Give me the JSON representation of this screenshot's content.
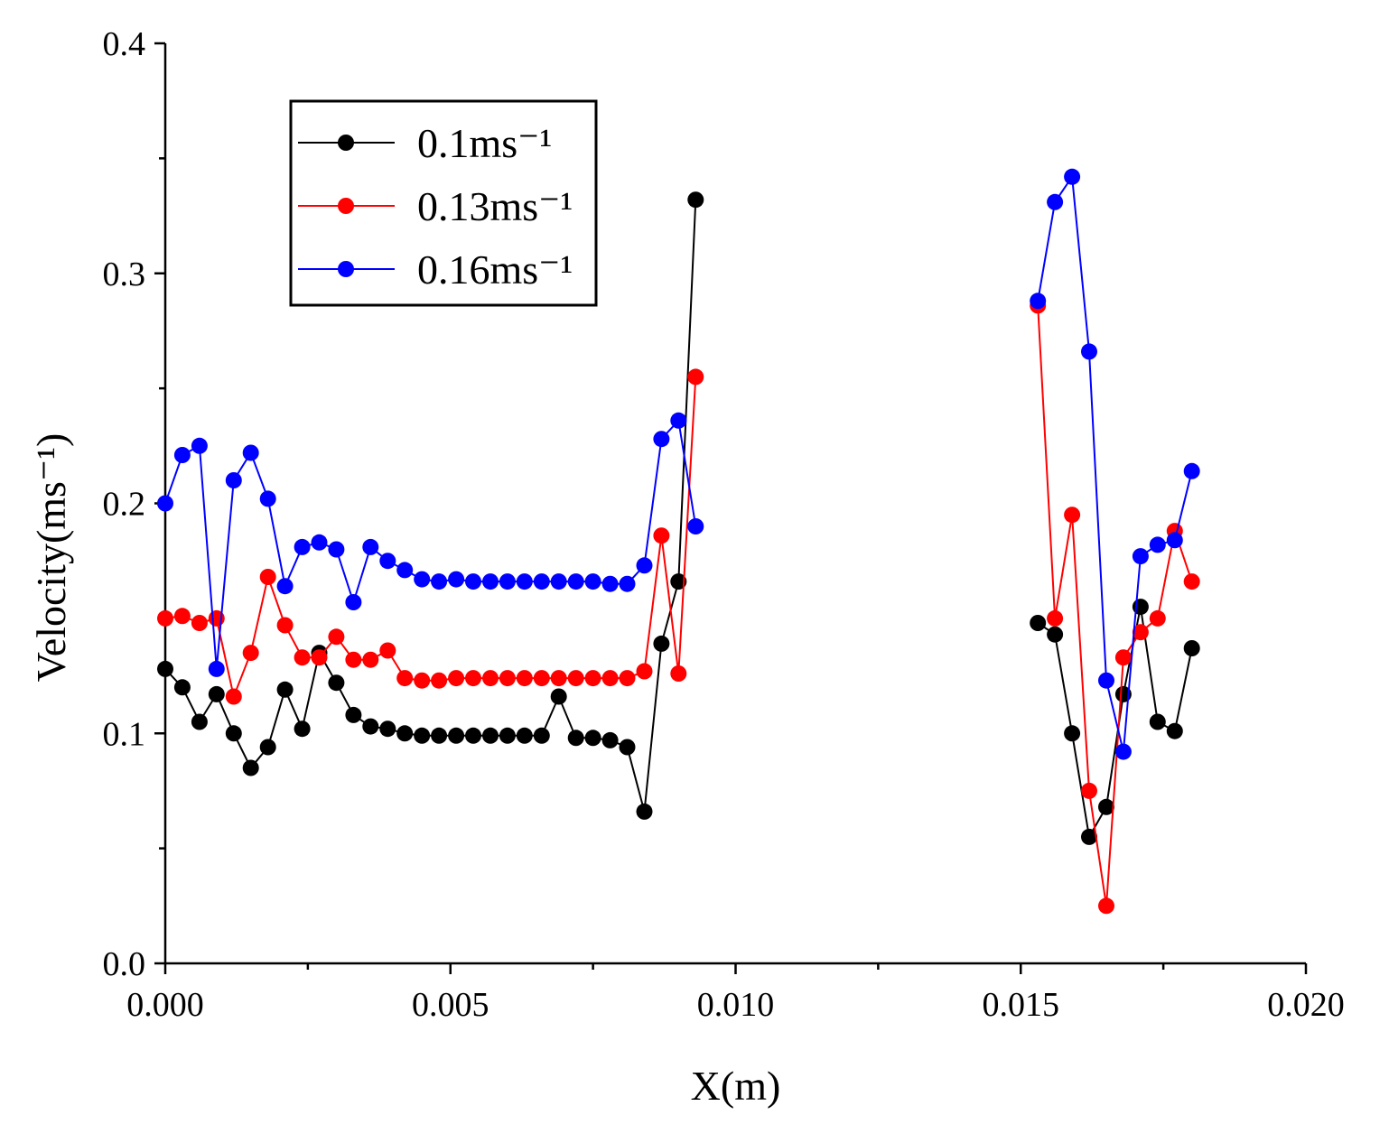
{
  "chart_data": {
    "type": "line",
    "title": "",
    "xlabel": "X(m)",
    "ylabel": "Velocity(ms⁻¹)",
    "xlim": [
      0.0,
      0.02
    ],
    "ylim": [
      0.0,
      0.4
    ],
    "xticks": [
      0.0,
      0.005,
      0.01,
      0.015,
      0.02
    ],
    "xtick_labels": [
      "0.000",
      "0.005",
      "0.010",
      "0.015",
      "0.020"
    ],
    "yticks": [
      0.0,
      0.1,
      0.2,
      0.3,
      0.4
    ],
    "ytick_labels": [
      "0.0",
      "0.1",
      "0.2",
      "0.3",
      "0.4"
    ],
    "grid": false,
    "legend_position": "top-left",
    "series": [
      {
        "name": "0.1ms⁻¹",
        "color": "#000000",
        "segments": [
          [
            [
              0.0,
              0.128
            ],
            [
              0.0003,
              0.12
            ],
            [
              0.0006,
              0.105
            ],
            [
              0.0009,
              0.117
            ],
            [
              0.0012,
              0.1
            ],
            [
              0.0015,
              0.085
            ],
            [
              0.0018,
              0.094
            ],
            [
              0.0021,
              0.119
            ],
            [
              0.0024,
              0.102
            ],
            [
              0.0027,
              0.135
            ],
            [
              0.003,
              0.122
            ],
            [
              0.0033,
              0.108
            ],
            [
              0.0036,
              0.103
            ],
            [
              0.0039,
              0.102
            ],
            [
              0.0042,
              0.1
            ],
            [
              0.0045,
              0.099
            ],
            [
              0.0048,
              0.099
            ],
            [
              0.0051,
              0.099
            ],
            [
              0.0054,
              0.099
            ],
            [
              0.0057,
              0.099
            ],
            [
              0.006,
              0.099
            ],
            [
              0.0063,
              0.099
            ],
            [
              0.0066,
              0.099
            ],
            [
              0.0069,
              0.116
            ],
            [
              0.0072,
              0.098
            ],
            [
              0.0075,
              0.098
            ],
            [
              0.0078,
              0.097
            ],
            [
              0.0081,
              0.094
            ],
            [
              0.0084,
              0.066
            ],
            [
              0.0087,
              0.139
            ],
            [
              0.009,
              0.166
            ],
            [
              0.0093,
              0.332
            ]
          ],
          [
            [
              0.0153,
              0.148
            ],
            [
              0.0156,
              0.143
            ],
            [
              0.0159,
              0.1
            ],
            [
              0.0162,
              0.055
            ],
            [
              0.0165,
              0.068
            ],
            [
              0.0168,
              0.117
            ],
            [
              0.0171,
              0.155
            ],
            [
              0.0174,
              0.105
            ],
            [
              0.0177,
              0.101
            ],
            [
              0.018,
              0.137
            ]
          ]
        ]
      },
      {
        "name": "0.13ms⁻¹",
        "color": "#ff0000",
        "segments": [
          [
            [
              0.0,
              0.15
            ],
            [
              0.0003,
              0.151
            ],
            [
              0.0006,
              0.148
            ],
            [
              0.0009,
              0.15
            ],
            [
              0.0012,
              0.116
            ],
            [
              0.0015,
              0.135
            ],
            [
              0.0018,
              0.168
            ],
            [
              0.0021,
              0.147
            ],
            [
              0.0024,
              0.133
            ],
            [
              0.0027,
              0.133
            ],
            [
              0.003,
              0.142
            ],
            [
              0.0033,
              0.132
            ],
            [
              0.0036,
              0.132
            ],
            [
              0.0039,
              0.136
            ],
            [
              0.0042,
              0.124
            ],
            [
              0.0045,
              0.123
            ],
            [
              0.0048,
              0.123
            ],
            [
              0.0051,
              0.124
            ],
            [
              0.0054,
              0.124
            ],
            [
              0.0057,
              0.124
            ],
            [
              0.006,
              0.124
            ],
            [
              0.0063,
              0.124
            ],
            [
              0.0066,
              0.124
            ],
            [
              0.0069,
              0.124
            ],
            [
              0.0072,
              0.124
            ],
            [
              0.0075,
              0.124
            ],
            [
              0.0078,
              0.124
            ],
            [
              0.0081,
              0.124
            ],
            [
              0.0084,
              0.127
            ],
            [
              0.0087,
              0.186
            ],
            [
              0.009,
              0.126
            ],
            [
              0.0093,
              0.255
            ]
          ],
          [
            [
              0.0153,
              0.286
            ],
            [
              0.0156,
              0.15
            ],
            [
              0.0159,
              0.195
            ],
            [
              0.0162,
              0.075
            ],
            [
              0.0165,
              0.025
            ],
            [
              0.0168,
              0.133
            ],
            [
              0.0171,
              0.144
            ],
            [
              0.0174,
              0.15
            ],
            [
              0.0177,
              0.188
            ],
            [
              0.018,
              0.166
            ]
          ]
        ]
      },
      {
        "name": "0.16ms⁻¹",
        "color": "#0000ff",
        "segments": [
          [
            [
              0.0,
              0.2
            ],
            [
              0.0003,
              0.221
            ],
            [
              0.0006,
              0.225
            ],
            [
              0.0009,
              0.128
            ],
            [
              0.0012,
              0.21
            ],
            [
              0.0015,
              0.222
            ],
            [
              0.0018,
              0.202
            ],
            [
              0.0021,
              0.164
            ],
            [
              0.0024,
              0.181
            ],
            [
              0.0027,
              0.183
            ],
            [
              0.003,
              0.18
            ],
            [
              0.0033,
              0.157
            ],
            [
              0.0036,
              0.181
            ],
            [
              0.0039,
              0.175
            ],
            [
              0.0042,
              0.171
            ],
            [
              0.0045,
              0.167
            ],
            [
              0.0048,
              0.166
            ],
            [
              0.0051,
              0.167
            ],
            [
              0.0054,
              0.166
            ],
            [
              0.0057,
              0.166
            ],
            [
              0.006,
              0.166
            ],
            [
              0.0063,
              0.166
            ],
            [
              0.0066,
              0.166
            ],
            [
              0.0069,
              0.166
            ],
            [
              0.0072,
              0.166
            ],
            [
              0.0075,
              0.166
            ],
            [
              0.0078,
              0.165
            ],
            [
              0.0081,
              0.165
            ],
            [
              0.0084,
              0.173
            ],
            [
              0.0087,
              0.228
            ],
            [
              0.009,
              0.236
            ],
            [
              0.0093,
              0.19
            ]
          ],
          [
            [
              0.0153,
              0.288
            ],
            [
              0.0156,
              0.331
            ],
            [
              0.0159,
              0.342
            ],
            [
              0.0162,
              0.266
            ],
            [
              0.0165,
              0.123
            ],
            [
              0.0168,
              0.092
            ],
            [
              0.0171,
              0.177
            ],
            [
              0.0174,
              0.182
            ],
            [
              0.0177,
              0.184
            ],
            [
              0.018,
              0.214
            ]
          ]
        ]
      }
    ]
  }
}
